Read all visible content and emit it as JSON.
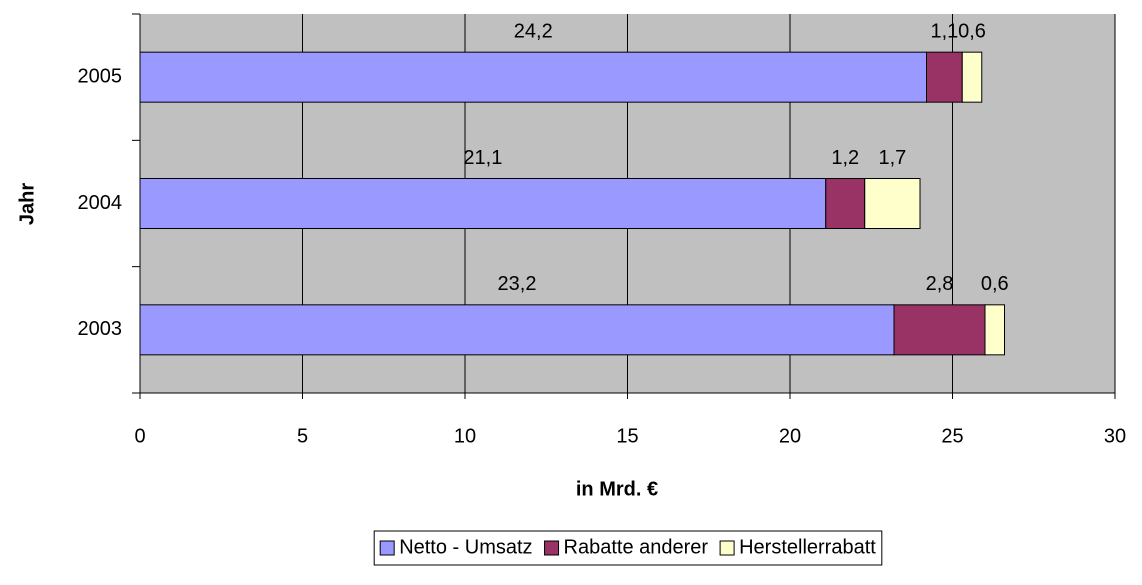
{
  "chart_data": {
    "type": "stacked_bar_horizontal",
    "x_label": "in Mrd. €",
    "y_label": "Jahr",
    "categories": [
      "2005",
      "2004",
      "2003"
    ],
    "series": [
      {
        "name": "Netto - Umsatz",
        "color": "#9999ff",
        "values": [
          24.2,
          21.1,
          23.2
        ],
        "value_labels": [
          "24,2",
          "21,1",
          "23,2"
        ]
      },
      {
        "name": "Rabatte anderer",
        "color": "#993366",
        "values": [
          1.1,
          1.2,
          2.8
        ],
        "value_labels": [
          "1,1",
          "1,2",
          "2,8"
        ]
      },
      {
        "name": "Herstellerrabatt",
        "color": "#ffffcc",
        "values": [
          0.6,
          1.7,
          0.6
        ],
        "value_labels": [
          "0,6",
          "1,7",
          "0,6"
        ]
      }
    ],
    "xlim": [
      0,
      30
    ],
    "xticks": [
      0,
      5,
      10,
      15,
      20,
      25,
      30
    ],
    "grid": true,
    "legend": "bottom"
  }
}
